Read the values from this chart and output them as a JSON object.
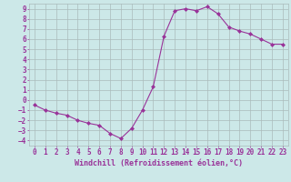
{
  "x": [
    0,
    1,
    2,
    3,
    4,
    5,
    6,
    7,
    8,
    9,
    10,
    11,
    12,
    13,
    14,
    15,
    16,
    17,
    18,
    19,
    20,
    21,
    22,
    23
  ],
  "y": [
    -0.5,
    -1.0,
    -1.3,
    -1.5,
    -2.0,
    -2.3,
    -2.5,
    -3.3,
    -3.8,
    -2.8,
    -1.0,
    1.3,
    6.3,
    8.8,
    9.0,
    8.8,
    9.2,
    8.5,
    7.2,
    6.8,
    6.5,
    6.0,
    5.5,
    5.5
  ],
  "line_color": "#993399",
  "marker": "D",
  "marker_size": 2,
  "bg_color": "#cce8e8",
  "grid_color": "#aabbbb",
  "ylim": [
    -4.5,
    9.5
  ],
  "xlim": [
    -0.5,
    23.5
  ],
  "yticks": [
    -4,
    -3,
    -2,
    -1,
    0,
    1,
    2,
    3,
    4,
    5,
    6,
    7,
    8,
    9
  ],
  "xticks": [
    0,
    1,
    2,
    3,
    4,
    5,
    6,
    7,
    8,
    9,
    10,
    11,
    12,
    13,
    14,
    15,
    16,
    17,
    18,
    19,
    20,
    21,
    22,
    23
  ],
  "xlabel": "Windchill (Refroidissement éolien,°C)",
  "label_color": "#993399",
  "label_fontsize": 6,
  "tick_fontsize": 5.5
}
